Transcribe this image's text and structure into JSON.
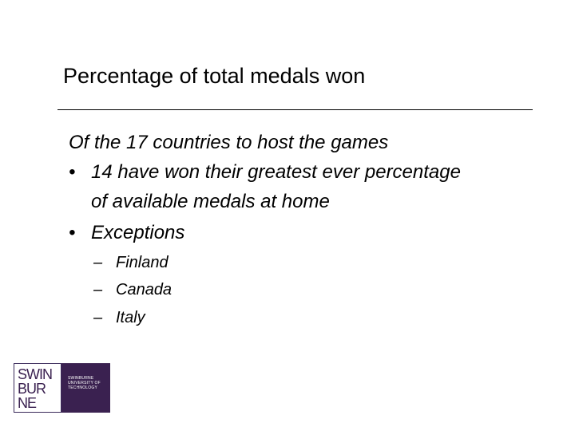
{
  "slide": {
    "title": "Percentage of total medals won",
    "intro": "Of the 17 countries to host the games",
    "bullet_symbol": "•",
    "dash_symbol": "–",
    "bullets": [
      {
        "text_line1": "14 have won their greatest ever percentage",
        "text_line2": "of available medals at home"
      },
      {
        "text_line1": "Exceptions"
      }
    ],
    "sub_bullets": [
      "Finland",
      "Canada",
      "Italy"
    ]
  },
  "logo": {
    "line1": "SWIN",
    "line2": "BUR",
    "line3": "NE",
    "tag1": "SWINBURNE",
    "tag2": "UNIVERSITY OF",
    "tag3": "TECHNOLOGY",
    "brand_color": "#3a2150"
  }
}
